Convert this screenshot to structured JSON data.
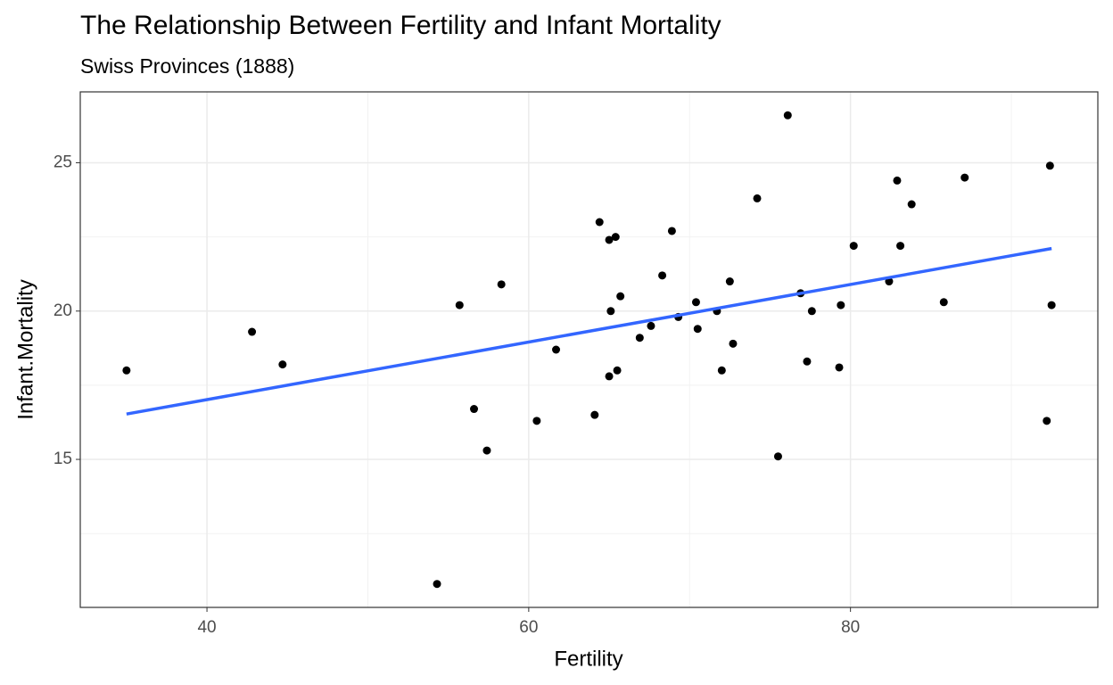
{
  "chart_data": {
    "type": "scatter",
    "title": "The Relationship Between Fertility and Infant Mortality",
    "subtitle": "Swiss Provinces (1888)",
    "x_label": "Fertility",
    "y_label": "Infant.Mortality",
    "x": [
      80.2,
      83.1,
      92.5,
      85.8,
      76.9,
      76.1,
      83.8,
      92.4,
      82.4,
      82.9,
      87.1,
      64.1,
      66.9,
      68.9,
      61.7,
      68.3,
      71.7,
      55.7,
      54.3,
      65.1,
      65.5,
      65.0,
      56.6,
      57.4,
      72.5,
      74.2,
      72.0,
      60.5,
      58.3,
      65.4,
      75.5,
      69.3,
      77.3,
      70.5,
      79.4,
      65.0,
      92.2,
      79.3,
      70.4,
      65.7,
      72.7,
      64.4,
      77.6,
      67.6,
      35.0,
      44.7,
      42.8
    ],
    "y": [
      22.2,
      22.2,
      20.2,
      20.3,
      20.6,
      26.6,
      23.6,
      24.9,
      21.0,
      24.4,
      24.5,
      16.5,
      19.1,
      22.7,
      18.7,
      21.2,
      20.0,
      20.2,
      10.8,
      20.0,
      18.0,
      22.4,
      16.7,
      15.3,
      21.0,
      23.8,
      18.0,
      16.3,
      20.9,
      22.5,
      15.1,
      19.8,
      18.3,
      19.4,
      20.2,
      17.8,
      16.3,
      18.1,
      20.3,
      20.5,
      18.9,
      23.0,
      20.0,
      19.5,
      18.0,
      18.2,
      19.3
    ],
    "color": "#000000",
    "fit": {
      "x": [
        35,
        92.5
      ],
      "y": [
        16.53,
        22.11
      ],
      "color": "#3366FF"
    },
    "xlim": [
      32.125,
      95.375
    ],
    "ylim": [
      10.01,
      27.39
    ],
    "xticks": [
      40,
      60,
      80
    ],
    "yticks": [
      15,
      20,
      25
    ],
    "x_minor_grid": [
      30,
      50,
      70,
      90
    ],
    "y_minor_grid": [
      12.5,
      17.5,
      22.5
    ],
    "grid": true
  }
}
